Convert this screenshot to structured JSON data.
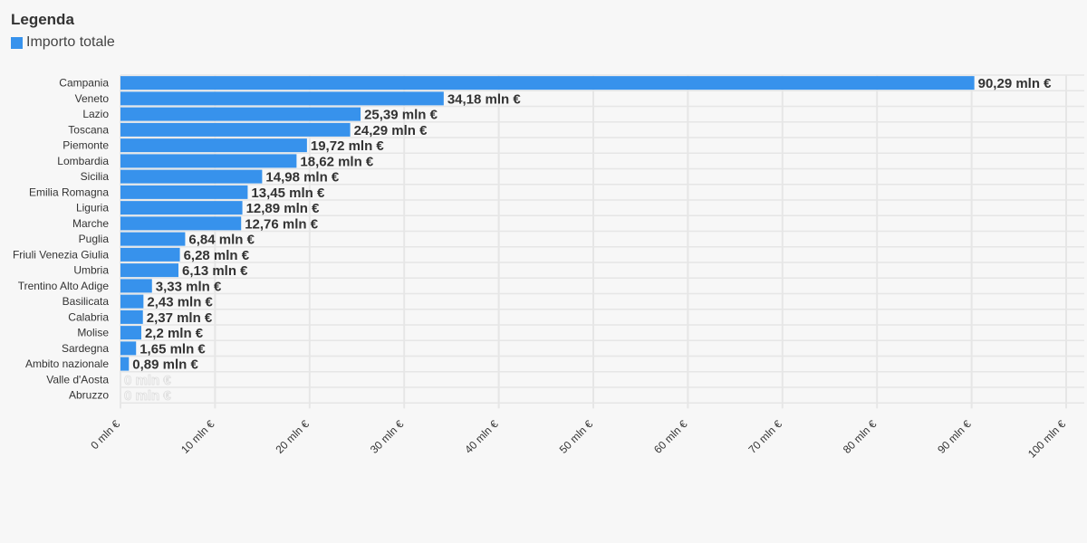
{
  "legend": {
    "title": "Legenda",
    "item_label": "Importo totale"
  },
  "colors": {
    "bar": "#3792ec",
    "grid": "#e6e6e6",
    "label_text": "#333333"
  },
  "chart_data": {
    "type": "bar",
    "orientation": "horizontal",
    "categories": [
      "Campania",
      "Veneto",
      "Lazio",
      "Toscana",
      "Piemonte",
      "Lombardia",
      "Sicilia",
      "Emilia Romagna",
      "Liguria",
      "Marche",
      "Puglia",
      "Friuli Venezia Giulia",
      "Umbria",
      "Trentino Alto Adige",
      "Basilicata",
      "Calabria",
      "Molise",
      "Sardegna",
      "Ambito nazionale",
      "Valle d'Aosta",
      "Abruzzo"
    ],
    "values": [
      90.29,
      34.18,
      25.39,
      24.29,
      19.72,
      18.62,
      14.98,
      13.45,
      12.89,
      12.76,
      6.84,
      6.28,
      6.13,
      3.33,
      2.43,
      2.37,
      2.2,
      1.65,
      0.89,
      0,
      0
    ],
    "value_labels": [
      "90,29 mln €",
      "34,18 mln €",
      "25,39 mln €",
      "24,29 mln €",
      "19,72 mln €",
      "18,62 mln €",
      "14,98 mln €",
      "13,45 mln €",
      "12,89 mln €",
      "12,76 mln €",
      "6,84 mln €",
      "6,28 mln €",
      "6,13 mln €",
      "3,33 mln €",
      "2,43 mln €",
      "2,37 mln €",
      "2,2 mln €",
      "1,65 mln €",
      "0,89 mln €",
      "0 mln €",
      "0 mln €"
    ],
    "series": [
      {
        "name": "Importo totale"
      }
    ],
    "xlim": [
      0,
      100
    ],
    "x_ticks": [
      0,
      10,
      20,
      30,
      40,
      50,
      60,
      70,
      80,
      90,
      100
    ],
    "x_tick_labels": [
      "0 mln €",
      "10 mln €",
      "20 mln €",
      "30 mln €",
      "40 mln €",
      "50 mln €",
      "60 mln €",
      "70 mln €",
      "80 mln €",
      "90 mln €",
      "100 mln €"
    ],
    "grid": true,
    "legend_position": "top-left"
  }
}
